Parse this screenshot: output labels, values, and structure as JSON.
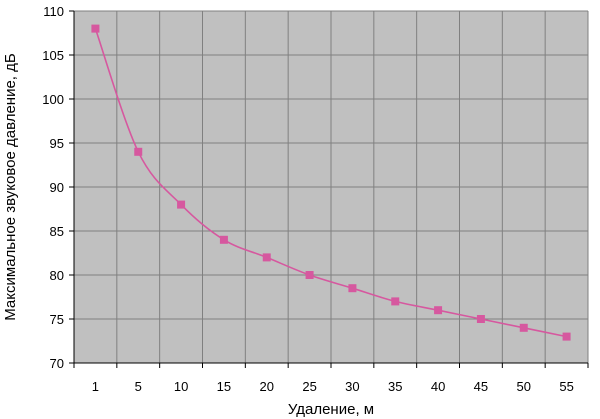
{
  "chart_data": {
    "type": "line",
    "title": "",
    "xlabel": "Удаление, м",
    "ylabel": "Максимальное звуковое давление, дБ",
    "categories": [
      "1",
      "5",
      "10",
      "15",
      "20",
      "25",
      "30",
      "35",
      "40",
      "45",
      "50",
      "55"
    ],
    "series": [
      {
        "values": [
          108,
          94,
          88,
          84,
          82,
          80,
          78.5,
          77,
          76,
          75,
          74,
          73
        ]
      }
    ],
    "ylim": [
      70,
      110
    ],
    "yticks": [
      "70",
      "75",
      "80",
      "85",
      "90",
      "95",
      "100",
      "105",
      "110"
    ],
    "grid": true,
    "line_style": "smoothed",
    "marker": "square",
    "colors": {
      "series": "#d6589f",
      "plot_background": "#c0c0c0",
      "grid": "#808080"
    }
  }
}
